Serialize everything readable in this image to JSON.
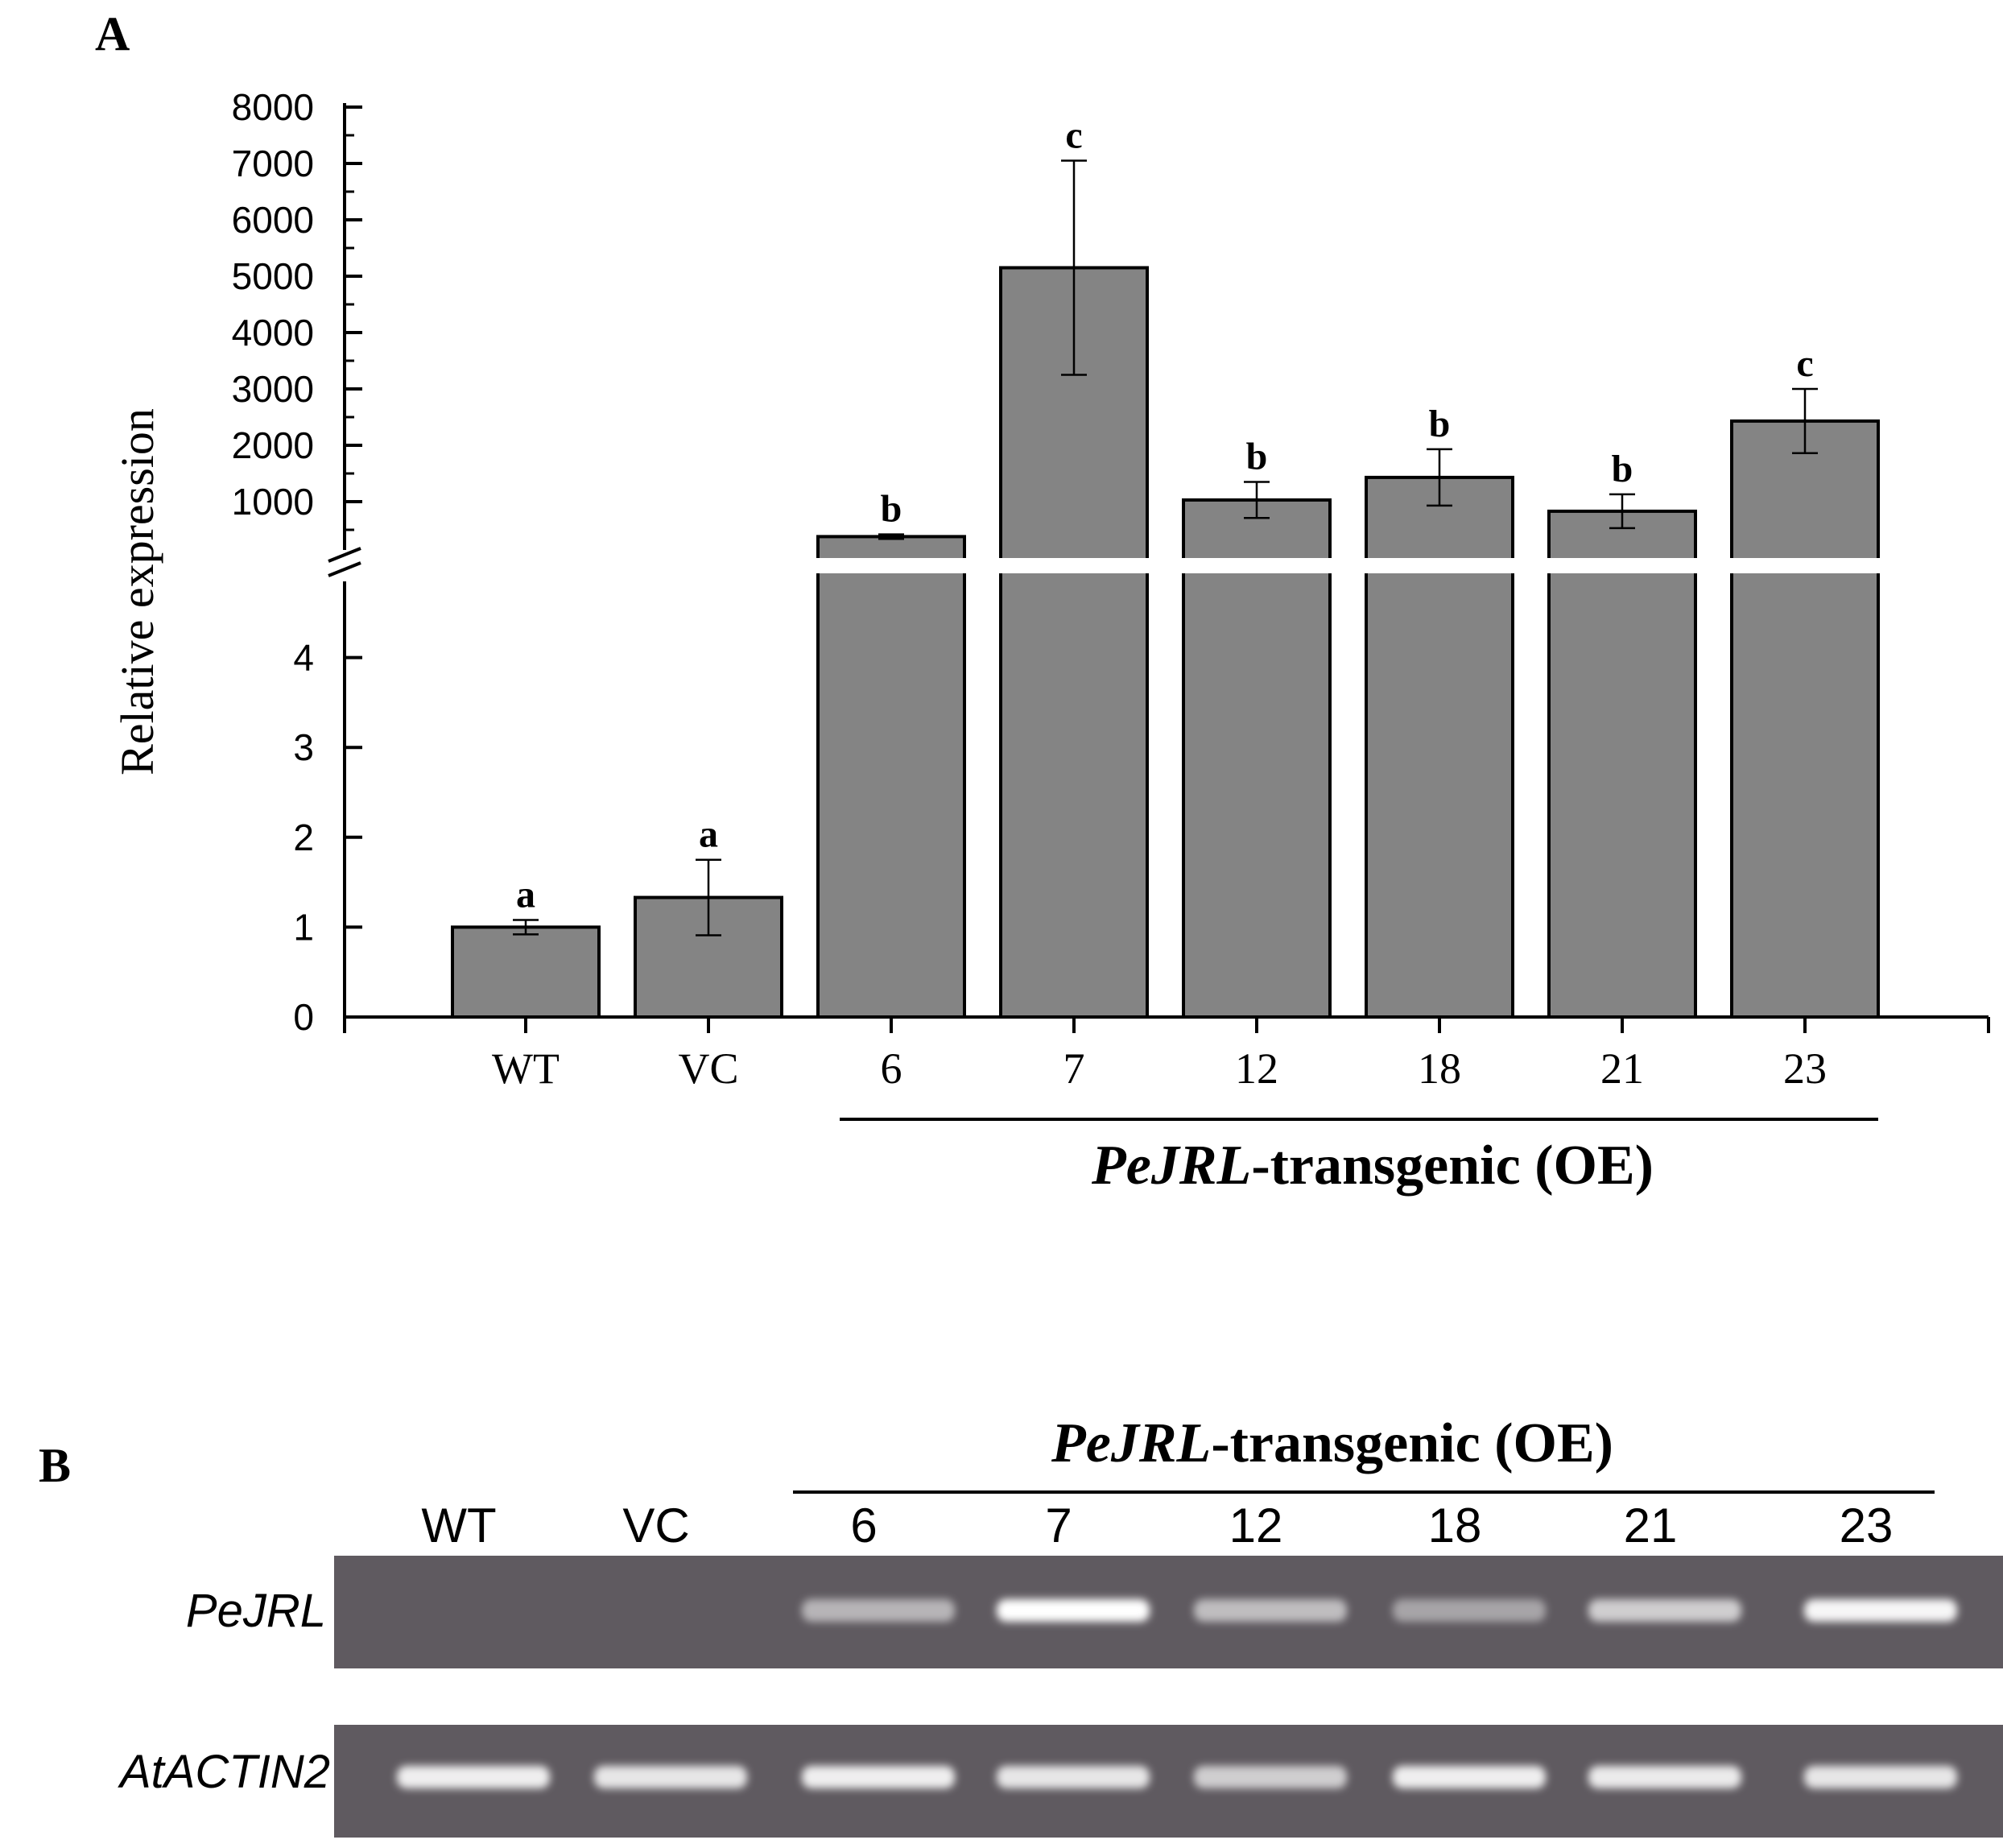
{
  "panelA": {
    "label": "A",
    "group_label_italic": "PeJRL",
    "group_label_rest": "-transgenic (OE)"
  },
  "panelB": {
    "label": "B",
    "group_label_italic": "PeJRL",
    "group_label_rest": "-transgenic (OE)",
    "lanes": [
      "WT",
      "VC",
      "6",
      "7",
      "12",
      "18",
      "21",
      "23"
    ],
    "genes": [
      "PeJRL",
      "AtACTIN2"
    ],
    "band_intensity": {
      "PeJRL": [
        0.0,
        0.0,
        0.55,
        1.0,
        0.6,
        0.45,
        0.7,
        0.95
      ],
      "AtACTIN2": [
        0.9,
        0.85,
        0.9,
        0.85,
        0.7,
        0.9,
        0.88,
        0.85
      ]
    }
  },
  "colors": {
    "bar": "#848484",
    "gel_bg": "#5f5a60",
    "band": "#ffffff"
  },
  "chart_data": {
    "type": "bar",
    "ylabel": "Relative expression",
    "xlabel": "PeJRL-transgenic (OE)",
    "categories": [
      "WT",
      "VC",
      "6",
      "7",
      "12",
      "18",
      "21",
      "23"
    ],
    "values": [
      1.0,
      1.33,
      380,
      5150,
      1030,
      1430,
      830,
      2430
    ],
    "errors": [
      0.08,
      0.42,
      40,
      1900,
      320,
      500,
      300,
      570
    ],
    "letters": [
      "a",
      "a",
      "b",
      "c",
      "b",
      "b",
      "b",
      "c"
    ],
    "axis_break": true,
    "lower_segment": {
      "ylim": [
        0,
        5
      ],
      "ticks": [
        "0",
        "1",
        "2",
        "3",
        "4"
      ]
    },
    "upper_segment": {
      "ylim": [
        0,
        8000
      ],
      "ticks": [
        "1000",
        "2000",
        "3000",
        "4000",
        "5000",
        "6000",
        "7000",
        "8000"
      ]
    }
  }
}
